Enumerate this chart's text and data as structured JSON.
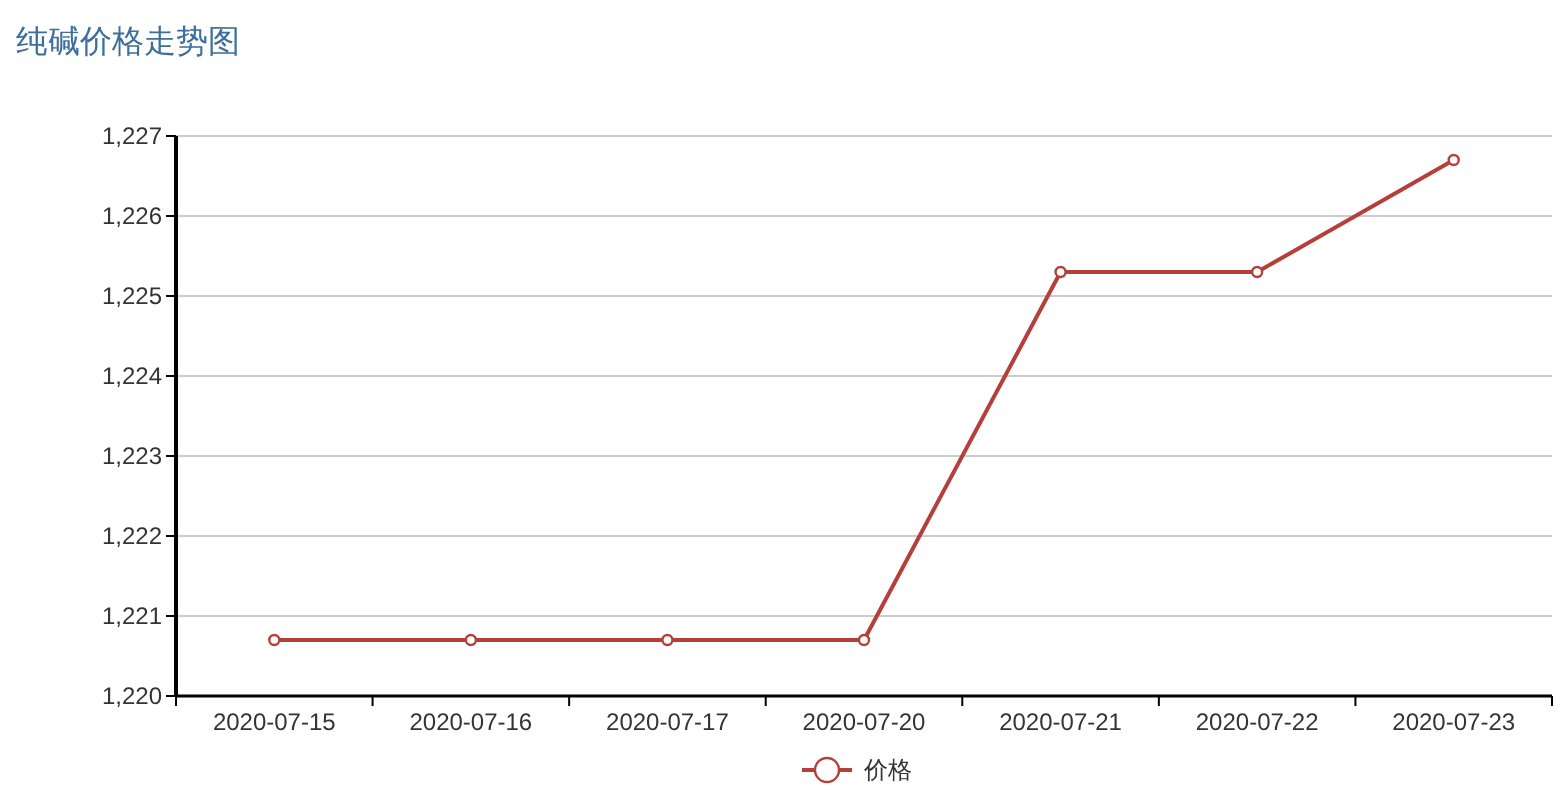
{
  "chart_data": {
    "type": "line",
    "title": "纯碱价格走势图",
    "categories": [
      "2020-07-15",
      "2020-07-16",
      "2020-07-17",
      "2020-07-20",
      "2020-07-21",
      "2020-07-22",
      "2020-07-23"
    ],
    "series": [
      {
        "name": "价格",
        "color": "#b5403a",
        "values": [
          1220.7,
          1220.7,
          1220.7,
          1220.7,
          1225.3,
          1225.3,
          1226.7
        ]
      }
    ],
    "ylim": [
      1220,
      1227
    ],
    "yticks": [
      {
        "value": 1220,
        "label": "1,220"
      },
      {
        "value": 1221,
        "label": "1,221"
      },
      {
        "value": 1222,
        "label": "1,222"
      },
      {
        "value": 1223,
        "label": "1,223"
      },
      {
        "value": 1224,
        "label": "1,224"
      },
      {
        "value": 1225,
        "label": "1,225"
      },
      {
        "value": 1226,
        "label": "1,226"
      },
      {
        "value": 1227,
        "label": "1,227"
      }
    ],
    "grid": "y",
    "legend": "bottom",
    "marker": "circle",
    "line_style": "solid"
  }
}
